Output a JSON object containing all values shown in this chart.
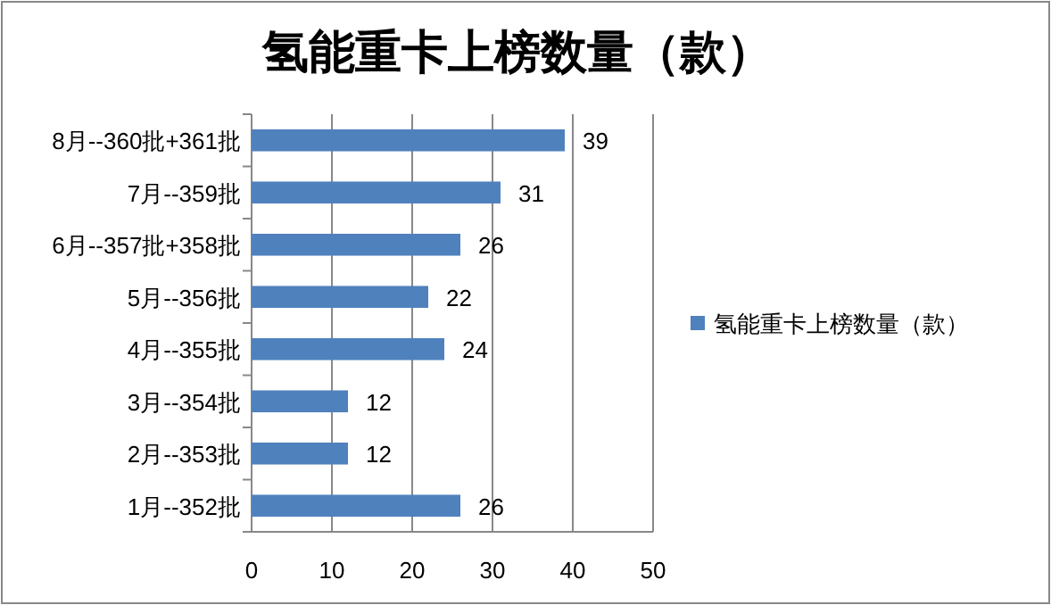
{
  "chart_data": {
    "type": "bar",
    "orientation": "horizontal",
    "title": "氢能重卡上榜数量（款）",
    "categories": [
      "8月--360批+361批",
      "7月--359批",
      "6月--357批+358批",
      "5月--356批",
      "4月--355批",
      "3月--354批",
      "2月--353批",
      "1月--352批"
    ],
    "series": [
      {
        "name": "氢能重卡上榜数量（款）",
        "color": "#4f81bd",
        "values": [
          39,
          31,
          26,
          22,
          24,
          12,
          12,
          26
        ]
      }
    ],
    "xlim": [
      0,
      50
    ],
    "xticks": [
      0,
      10,
      20,
      30,
      40,
      50
    ],
    "grid": "x",
    "legend": "right",
    "data_labels": true
  }
}
